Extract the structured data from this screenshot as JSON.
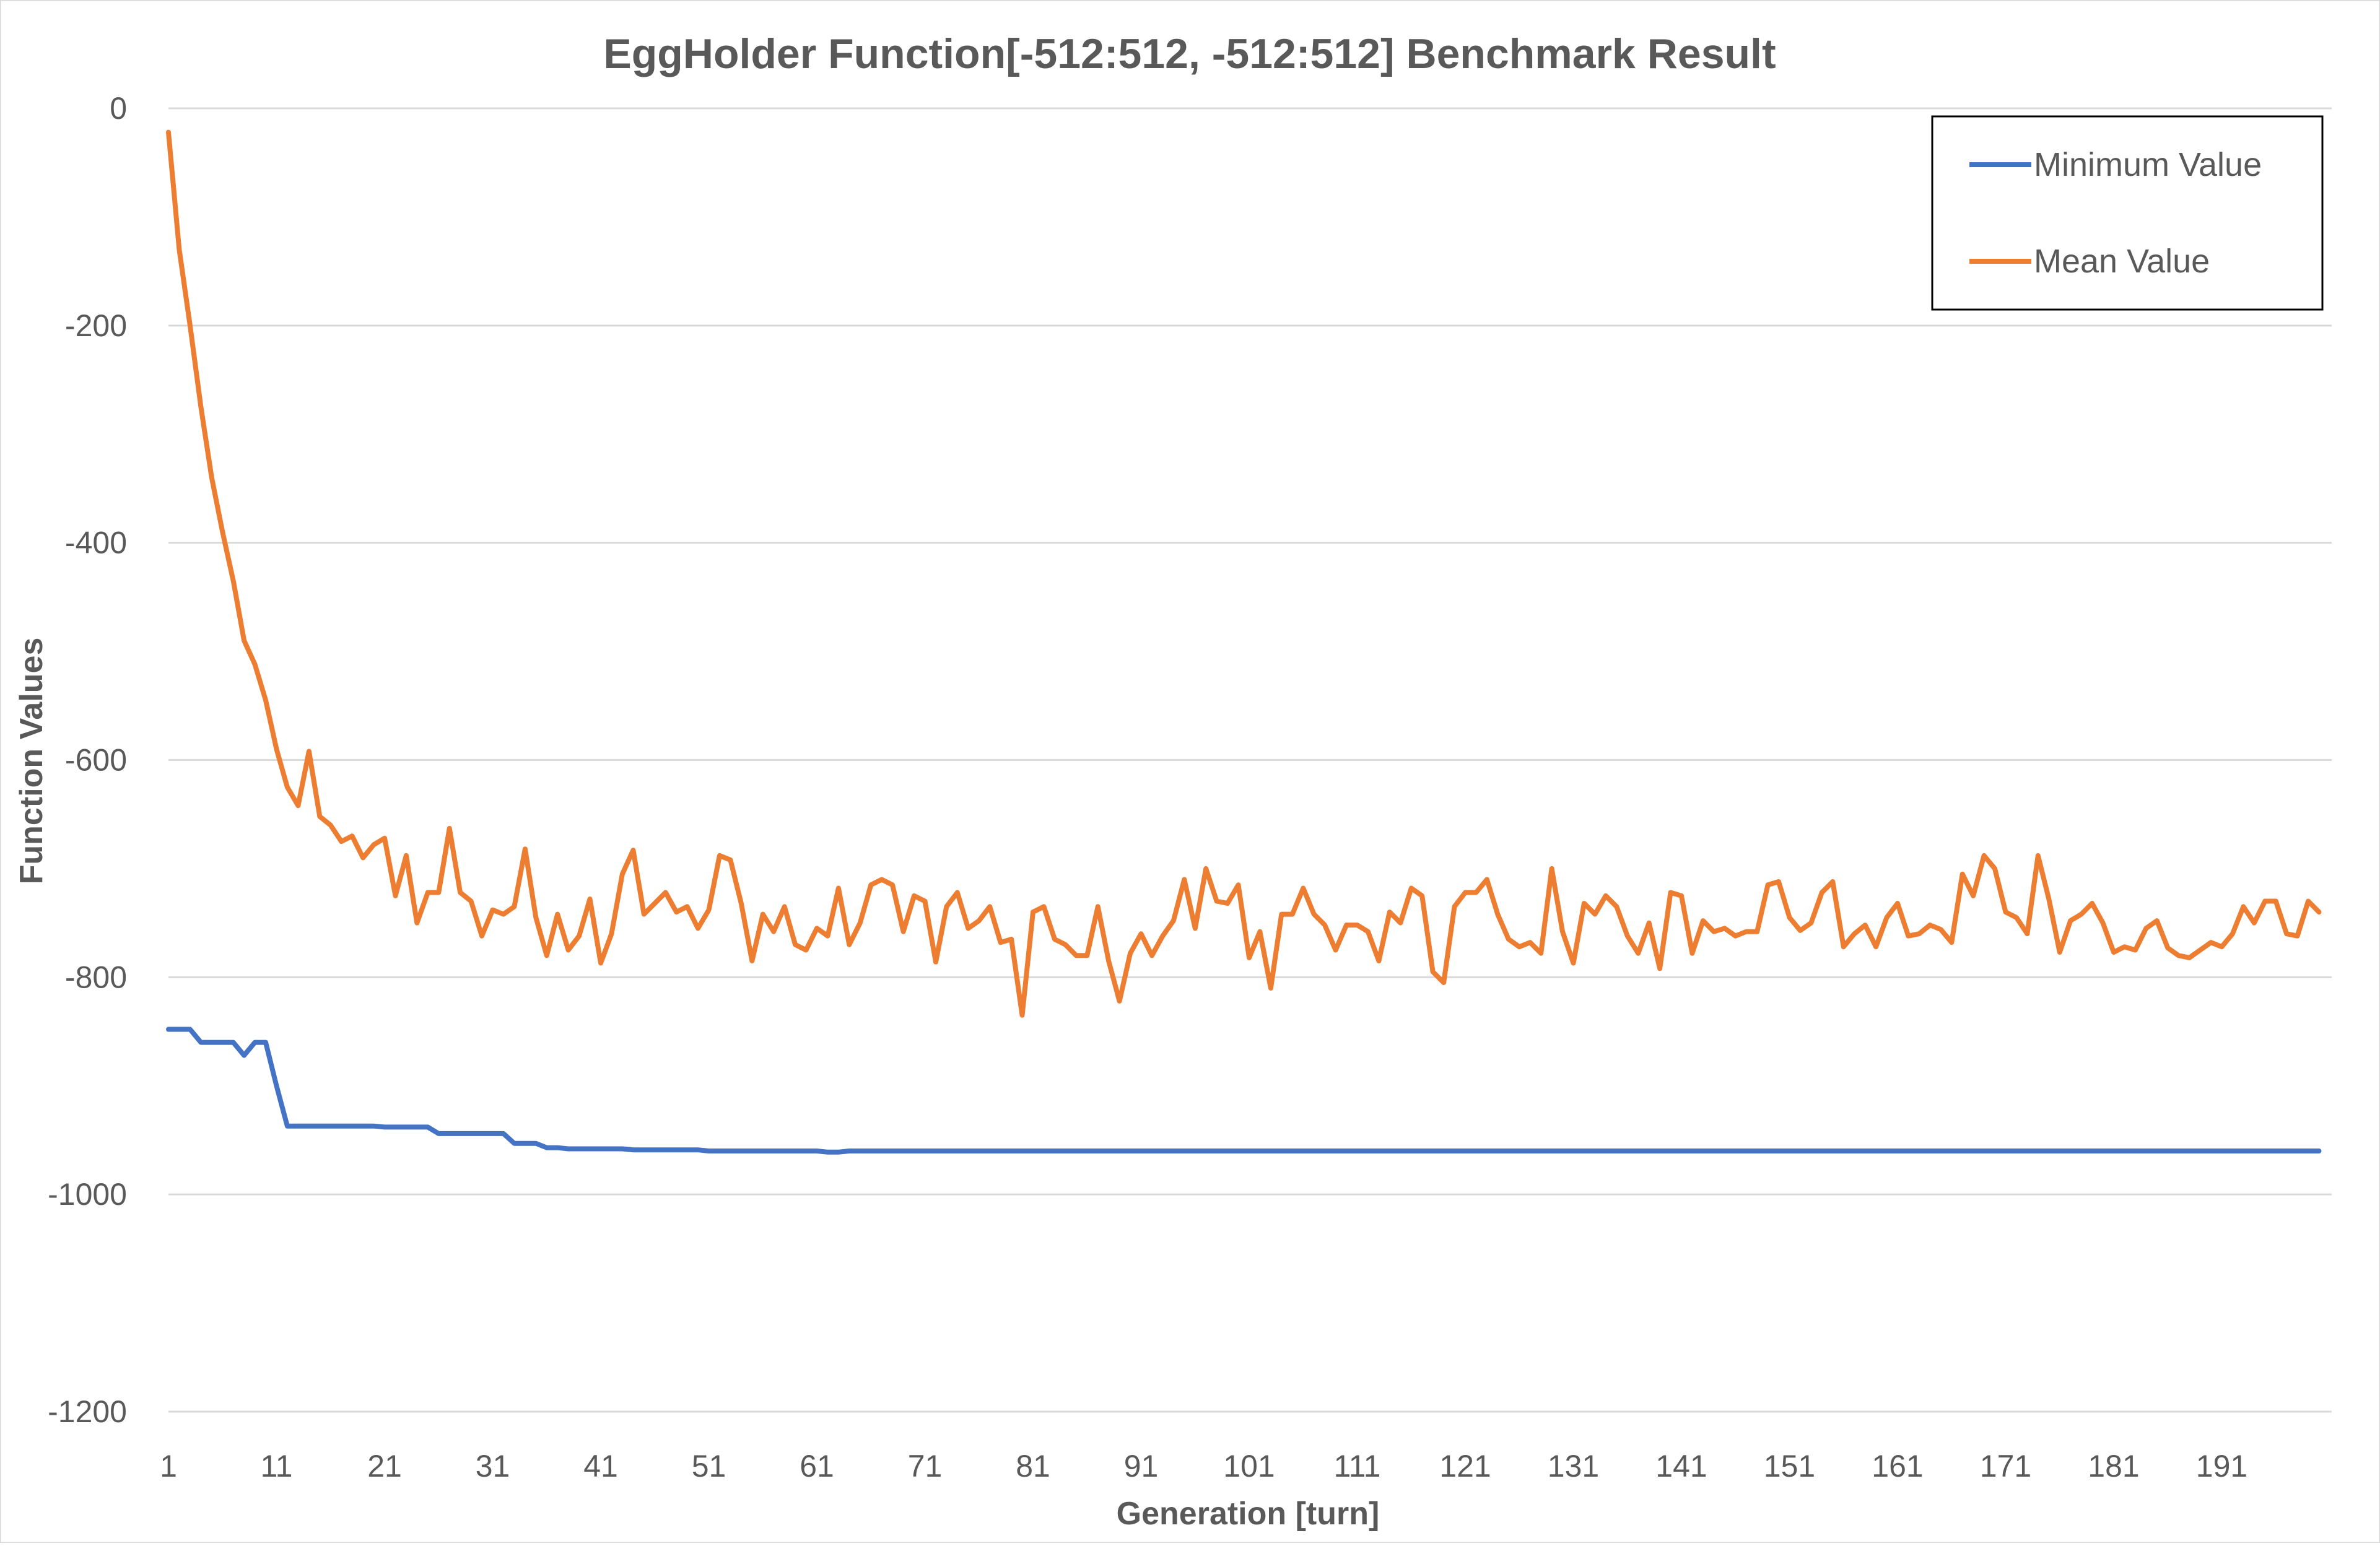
{
  "chart_data": {
    "type": "line",
    "title": "EggHolder Function[-512:512, -512:512] Benchmark Result",
    "xlabel": "Generation [turn]",
    "ylabel": "Function Values",
    "x_tick_labels": [
      "1",
      "11",
      "21",
      "31",
      "41",
      "51",
      "61",
      "71",
      "81",
      "91",
      "101",
      "111",
      "121",
      "131",
      "141",
      "151",
      "161",
      "171",
      "181",
      "191"
    ],
    "y_tick_labels": [
      "0",
      "-200",
      "-400",
      "-600",
      "-800",
      "-1000",
      "-1200"
    ],
    "y_ticks": [
      0,
      -200,
      -400,
      -600,
      -800,
      -1000,
      -1200
    ],
    "ylim": [
      -1200,
      0
    ],
    "xlim": [
      1,
      200
    ],
    "grid": "horizontal",
    "legend_position": "top-right",
    "x_start": 1,
    "series": [
      {
        "name": "Minimum Value",
        "color": "#4472C4",
        "values": [
          -848,
          -848,
          -848,
          -860,
          -860,
          -860,
          -860,
          -872,
          -860,
          -860,
          -900,
          -937,
          -937,
          -937,
          -937,
          -937,
          -937,
          -937,
          -937,
          -937,
          -938,
          -938,
          -938,
          -938,
          -938,
          -944,
          -944,
          -944,
          -944,
          -944,
          -944,
          -944,
          -953,
          -953,
          -953,
          -957,
          -957,
          -958,
          -958,
          -958,
          -958,
          -958,
          -958,
          -959,
          -959,
          -959,
          -959,
          -959,
          -959,
          -959,
          -960,
          -960,
          -960,
          -960,
          -960,
          -960,
          -960,
          -960,
          -960,
          -960,
          -960,
          -961,
          -961,
          -960,
          -960,
          -960,
          -960,
          -960,
          -960,
          -960,
          -960,
          -960,
          -960,
          -960,
          -960,
          -960,
          -960,
          -960,
          -960,
          -960,
          -960,
          -960,
          -960,
          -960,
          -960,
          -960,
          -960,
          -960,
          -960,
          -960,
          -960,
          -960,
          -960,
          -960,
          -960,
          -960,
          -960,
          -960,
          -960,
          -960,
          -960,
          -960,
          -960,
          -960,
          -960,
          -960,
          -960,
          -960,
          -960,
          -960,
          -960,
          -960,
          -960,
          -960,
          -960,
          -960,
          -960,
          -960,
          -960,
          -960,
          -960,
          -960,
          -960,
          -960,
          -960,
          -960,
          -960,
          -960,
          -960,
          -960,
          -960,
          -960,
          -960,
          -960,
          -960,
          -960,
          -960,
          -960,
          -960,
          -960,
          -960,
          -960,
          -960,
          -960,
          -960,
          -960,
          -960,
          -960,
          -960,
          -960,
          -960,
          -960,
          -960,
          -960,
          -960,
          -960,
          -960,
          -960,
          -960,
          -960,
          -960,
          -960,
          -960,
          -960,
          -960,
          -960,
          -960,
          -960,
          -960,
          -960,
          -960,
          -960,
          -960,
          -960,
          -960,
          -960,
          -960,
          -960,
          -960,
          -960,
          -960,
          -960,
          -960,
          -960,
          -960,
          -960,
          -960,
          -960,
          -960,
          -960,
          -960,
          -960,
          -960,
          -960,
          -960,
          -960,
          -960,
          -960,
          -960,
          -960
        ]
      },
      {
        "name": "Mean Value",
        "color": "#ED7D31",
        "values": [
          -22,
          -130,
          -200,
          -275,
          -340,
          -390,
          -435,
          -490,
          -512,
          -545,
          -590,
          -625,
          -642,
          -592,
          -652,
          -660,
          -675,
          -670,
          -690,
          -678,
          -672,
          -725,
          -688,
          -750,
          -722,
          -722,
          -663,
          -722,
          -730,
          -762,
          -738,
          -742,
          -735,
          -682,
          -745,
          -780,
          -742,
          -775,
          -762,
          -728,
          -787,
          -760,
          -705,
          -683,
          -742,
          -732,
          -722,
          -740,
          -735,
          -755,
          -738,
          -688,
          -692,
          -732,
          -785,
          -742,
          -758,
          -735,
          -770,
          -775,
          -755,
          -762,
          -718,
          -770,
          -750,
          -715,
          -710,
          -715,
          -758,
          -725,
          -730,
          -786,
          -735,
          -722,
          -755,
          -748,
          -735,
          -768,
          -765,
          -835,
          -740,
          -735,
          -765,
          -770,
          -780,
          -780,
          -735,
          -785,
          -822,
          -778,
          -760,
          -780,
          -762,
          -748,
          -710,
          -755,
          -700,
          -730,
          -732,
          -715,
          -782,
          -758,
          -810,
          -742,
          -742,
          -718,
          -742,
          -752,
          -775,
          -752,
          -752,
          -758,
          -785,
          -740,
          -750,
          -718,
          -725,
          -795,
          -805,
          -735,
          -722,
          -722,
          -710,
          -742,
          -765,
          -772,
          -768,
          -778,
          -700,
          -758,
          -787,
          -732,
          -742,
          -725,
          -735,
          -762,
          -778,
          -750,
          -792,
          -722,
          -725,
          -778,
          -748,
          -758,
          -755,
          -762,
          -758,
          -758,
          -715,
          -712,
          -745,
          -757,
          -750,
          -722,
          -712,
          -772,
          -760,
          -752,
          -772,
          -745,
          -732,
          -762,
          -760,
          -752,
          -756,
          -768,
          -705,
          -725,
          -688,
          -700,
          -740,
          -745,
          -760,
          -688,
          -728,
          -777,
          -748,
          -742,
          -732,
          -750,
          -777,
          -772,
          -775,
          -755,
          -748,
          -773,
          -780,
          -782,
          -775,
          -768,
          -772,
          -760,
          -735,
          -750,
          -730,
          -730,
          -760,
          -762,
          -730,
          -740
        ]
      }
    ]
  }
}
